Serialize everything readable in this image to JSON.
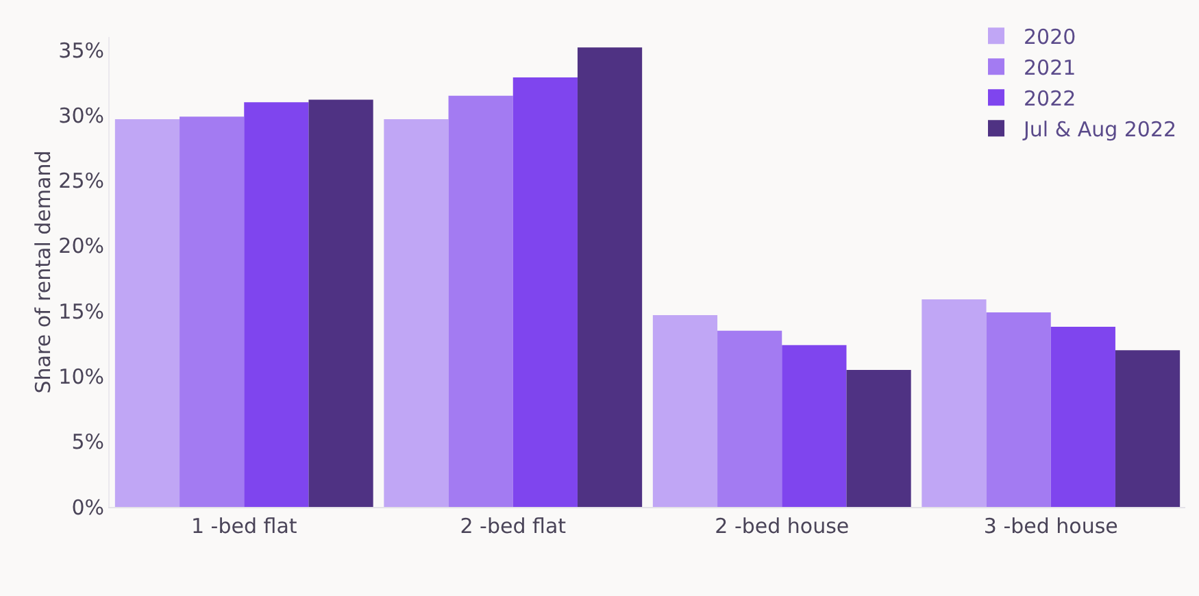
{
  "chart_data": {
    "type": "bar",
    "ylabel": "Share of rental demand",
    "categories": [
      "1 -bed flat",
      "2 -bed flat",
      "2 -bed house",
      "3 -bed house"
    ],
    "series": [
      {
        "name": "2020",
        "color": "#c0a6f5",
        "values": [
          29.7,
          29.7,
          14.7,
          15.9
        ]
      },
      {
        "name": "2021",
        "color": "#a37bf2",
        "values": [
          29.9,
          31.5,
          13.5,
          14.9
        ]
      },
      {
        "name": "2022",
        "color": "#7f45ee",
        "values": [
          31.0,
          32.9,
          12.4,
          13.8
        ]
      },
      {
        "name": "Jul & Aug 2022",
        "color": "#4f3283",
        "values": [
          31.2,
          35.2,
          10.5,
          12.0
        ]
      }
    ],
    "ylim": [
      0,
      36
    ],
    "yticks": [
      {
        "value": 0,
        "label": "0%"
      },
      {
        "value": 5,
        "label": "5%"
      },
      {
        "value": 10,
        "label": "10%"
      },
      {
        "value": 15,
        "label": "15%"
      },
      {
        "value": 20,
        "label": "20%"
      },
      {
        "value": 25,
        "label": "25%"
      },
      {
        "value": 30,
        "label": "30%"
      },
      {
        "value": 35,
        "label": "35%"
      }
    ],
    "grid": false,
    "legend": "top right"
  }
}
